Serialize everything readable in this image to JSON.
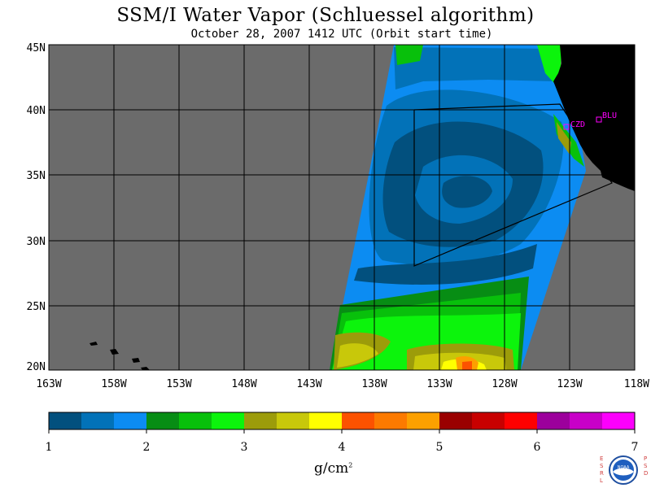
{
  "header": {
    "title": "SSM/I Water Vapor (Schluessel algorithm)",
    "subtitle": "October 28, 2007  1412 UTC  (Orbit start time)"
  },
  "map": {
    "lat_labels": [
      "45N",
      "40N",
      "35N",
      "30N",
      "25N",
      "20N"
    ],
    "lon_labels": [
      "163W",
      "158W",
      "153W",
      "148W",
      "143W",
      "138W",
      "133W",
      "128W",
      "123W",
      "118W"
    ],
    "stations": [
      {
        "label": "CZD"
      },
      {
        "label": "BLU"
      }
    ],
    "colors": {
      "no_data": "#6b6b6b",
      "land": "#000000",
      "station": "#ff00ff"
    }
  },
  "colorbar": {
    "tick_labels": [
      "1",
      "2",
      "3",
      "4",
      "5",
      "6",
      "7"
    ],
    "colors": [
      "#02507e",
      "#0272b8",
      "#0c8cf2",
      "#078d14",
      "#08c00b",
      "#0cf40c",
      "#9c9c0a",
      "#c8c80a",
      "#ffff00",
      "#fc5200",
      "#fc7a00",
      "#fca000",
      "#9a0000",
      "#c80000",
      "#fe0000",
      "#9c009c",
      "#c800c8",
      "#fc00fc"
    ],
    "unit": "g/cm",
    "unit_sup": "2"
  },
  "logo": {
    "left_text": "ESRL",
    "right_text": "PSD",
    "center_text": "NOAA"
  }
}
